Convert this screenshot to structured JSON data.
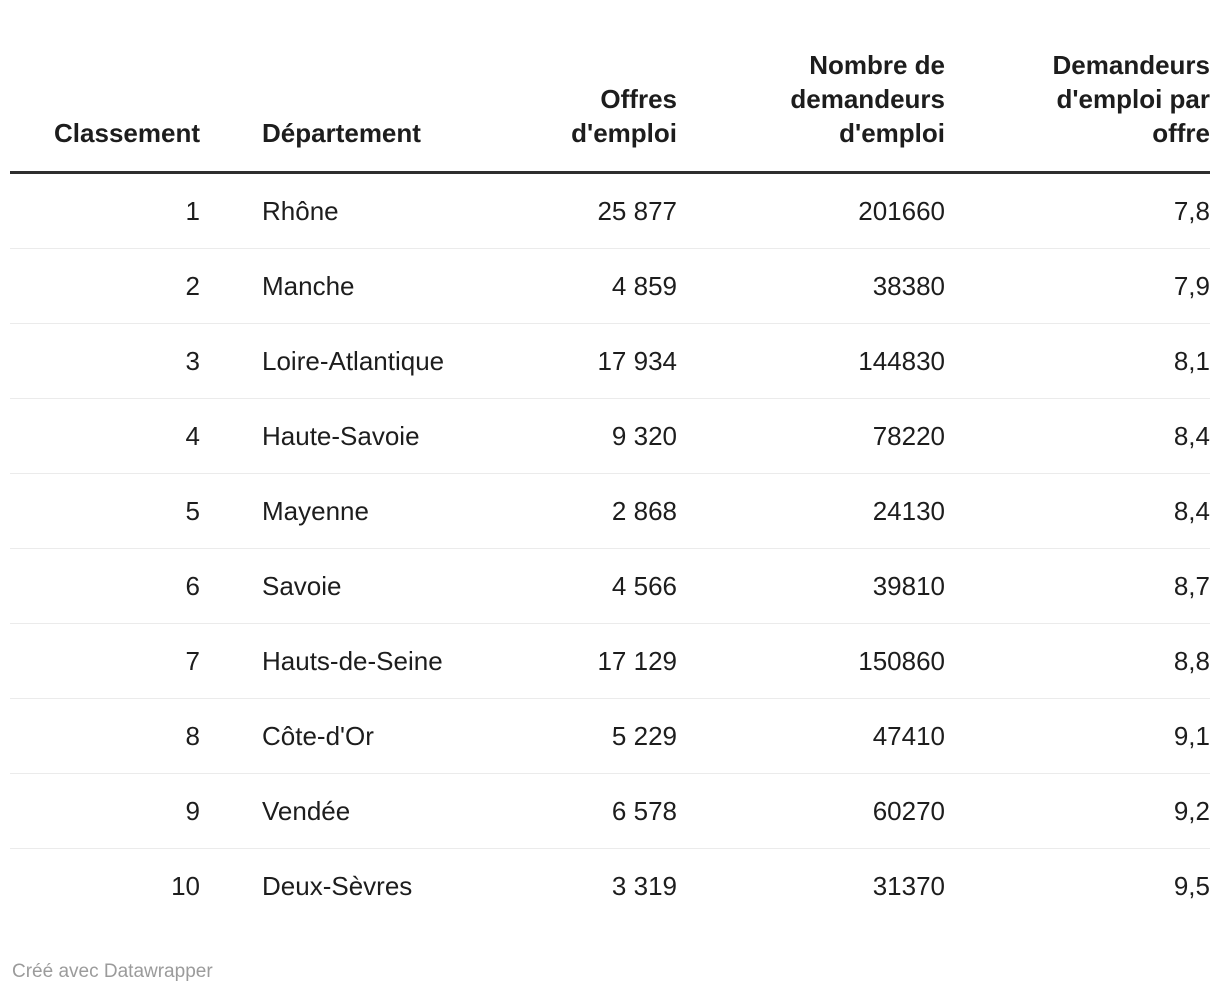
{
  "chart_data": {
    "type": "table",
    "columns": [
      {
        "id": "classement",
        "label": "Classement",
        "align": "right"
      },
      {
        "id": "departement",
        "label": "Département",
        "align": "left"
      },
      {
        "id": "offres",
        "label": "Offres d'emploi",
        "align": "right"
      },
      {
        "id": "demandeurs",
        "label": "Nombre de demandeurs d'emploi",
        "align": "right"
      },
      {
        "id": "ratio",
        "label": "Demandeurs d'emploi par offre",
        "align": "right"
      }
    ],
    "rows": [
      {
        "classement": "1",
        "departement": "Rhône",
        "offres": "25 877",
        "demandeurs": "201660",
        "ratio": "7,8"
      },
      {
        "classement": "2",
        "departement": "Manche",
        "offres": "4 859",
        "demandeurs": "38380",
        "ratio": "7,9"
      },
      {
        "classement": "3",
        "departement": "Loire-Atlantique",
        "offres": "17 934",
        "demandeurs": "144830",
        "ratio": "8,1"
      },
      {
        "classement": "4",
        "departement": "Haute-Savoie",
        "offres": "9 320",
        "demandeurs": "78220",
        "ratio": "8,4"
      },
      {
        "classement": "5",
        "departement": "Mayenne",
        "offres": "2 868",
        "demandeurs": "24130",
        "ratio": "8,4"
      },
      {
        "classement": "6",
        "departement": "Savoie",
        "offres": "4 566",
        "demandeurs": "39810",
        "ratio": "8,7"
      },
      {
        "classement": "7",
        "departement": "Hauts-de-Seine",
        "offres": "17 129",
        "demandeurs": "150860",
        "ratio": "8,8"
      },
      {
        "classement": "8",
        "departement": "Côte-d'Or",
        "offres": "5 229",
        "demandeurs": "47410",
        "ratio": "9,1"
      },
      {
        "classement": "9",
        "departement": "Vendée",
        "offres": "6 578",
        "demandeurs": "60270",
        "ratio": "9,2"
      },
      {
        "classement": "10",
        "departement": "Deux-Sèvres",
        "offres": "3 319",
        "demandeurs": "31370",
        "ratio": "9,5"
      }
    ]
  },
  "footer": {
    "credit": "Créé avec Datawrapper"
  },
  "colors": {
    "text": "#1d1d1d",
    "header_rule": "#2e2e2e",
    "row_divider": "#ebebeb",
    "credit": "#9b9b9b",
    "background": "#ffffff"
  }
}
